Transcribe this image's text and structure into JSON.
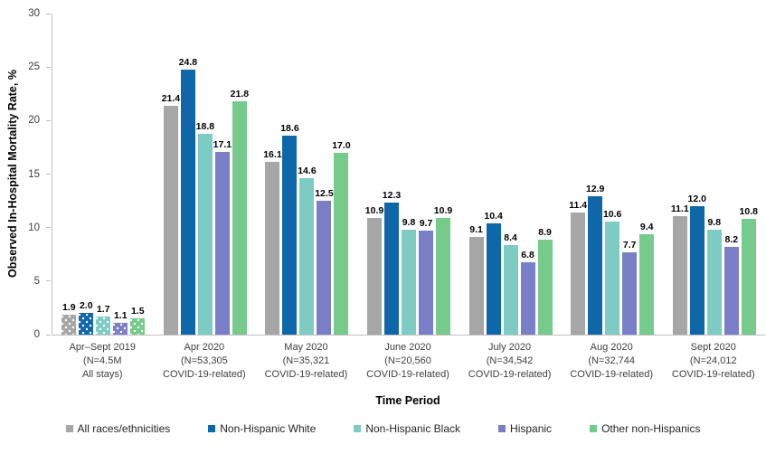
{
  "chart_data": {
    "type": "bar",
    "title": "",
    "ylabel": "Observed In-Hospital Mortality Rate, %",
    "xlabel": "Time Period",
    "ylim": [
      0,
      30
    ],
    "yticks": [
      0,
      5,
      10,
      15,
      20,
      25,
      30
    ],
    "grid": false,
    "legend_position": "bottom",
    "axis_line_color": "#bfbfbf",
    "first_category_fill": "dotted",
    "categories": [
      [
        "Apr–Sept 2019",
        "(N=4.5M",
        "All stays)"
      ],
      [
        "Apr 2020",
        "(N=53,305",
        "COVID-19-related)"
      ],
      [
        "May 2020",
        "(N=35,321",
        "COVID-19-related)"
      ],
      [
        "June 2020",
        "(N=20,560",
        "COVID-19-related)"
      ],
      [
        "July 2020",
        "(N=34,542",
        "COVID-19-related)"
      ],
      [
        "Aug 2020",
        "(N=32,744",
        "COVID-19-related)"
      ],
      [
        "Sept 2020",
        "(N=24,012",
        "COVID-19-related)"
      ]
    ],
    "series": [
      {
        "name": "All races/ethnicities",
        "color": "#a6a6a6",
        "values": [
          1.9,
          21.4,
          16.1,
          10.9,
          9.1,
          11.4,
          11.1
        ]
      },
      {
        "name": "Non-Hispanic White",
        "color": "#0d67a9",
        "values": [
          2.0,
          24.8,
          18.6,
          12.3,
          10.4,
          12.9,
          12.0
        ]
      },
      {
        "name": "Non-Hispanic Black",
        "color": "#7ecbc4",
        "values": [
          1.7,
          18.8,
          14.6,
          9.8,
          8.4,
          10.6,
          9.8
        ]
      },
      {
        "name": "Hispanic",
        "color": "#7a7ec6",
        "values": [
          1.1,
          17.1,
          12.5,
          9.7,
          6.8,
          7.7,
          8.2
        ]
      },
      {
        "name": "Other non-Hispanics",
        "color": "#75ca8c",
        "values": [
          1.5,
          21.8,
          17.0,
          10.9,
          8.9,
          9.4,
          10.8
        ]
      }
    ]
  }
}
